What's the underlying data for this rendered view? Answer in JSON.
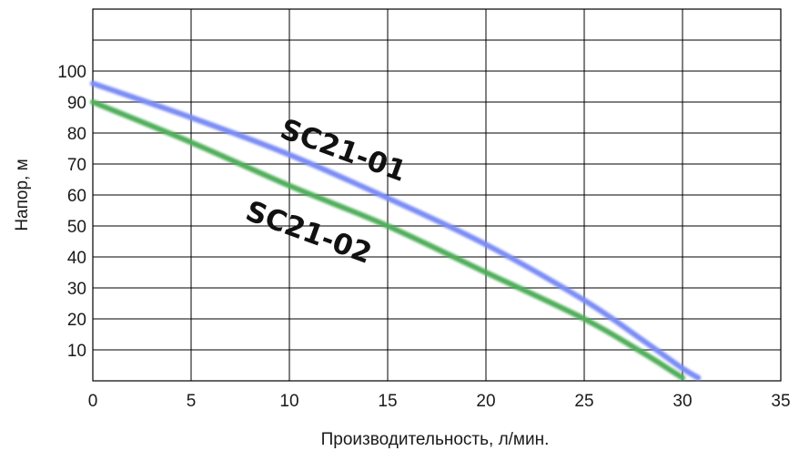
{
  "chart_data": {
    "type": "line",
    "title": "",
    "xlabel": "Производительность, л/мин.",
    "ylabel": "Напор, м",
    "xlim": [
      0,
      35
    ],
    "ylim": [
      0,
      120
    ],
    "x_ticks": [
      0,
      5,
      10,
      15,
      20,
      25,
      30,
      35
    ],
    "y_ticks": [
      10,
      20,
      30,
      40,
      50,
      60,
      70,
      80,
      90,
      100
    ],
    "grid": true,
    "series": [
      {
        "name": "SC21-01",
        "color": "#7a8cf5",
        "points": [
          [
            0,
            96
          ],
          [
            5,
            85
          ],
          [
            10,
            73
          ],
          [
            15,
            59
          ],
          [
            20,
            44
          ],
          [
            25,
            26
          ],
          [
            28,
            13
          ],
          [
            30,
            4
          ],
          [
            30.8,
            1
          ]
        ]
      },
      {
        "name": "SC21-02",
        "color": "#4fae5a",
        "points": [
          [
            0,
            90
          ],
          [
            5,
            77
          ],
          [
            10,
            63
          ],
          [
            15,
            50
          ],
          [
            20,
            35
          ],
          [
            25,
            20
          ],
          [
            28,
            9
          ],
          [
            29.5,
            3
          ],
          [
            30,
            1
          ]
        ]
      }
    ]
  }
}
